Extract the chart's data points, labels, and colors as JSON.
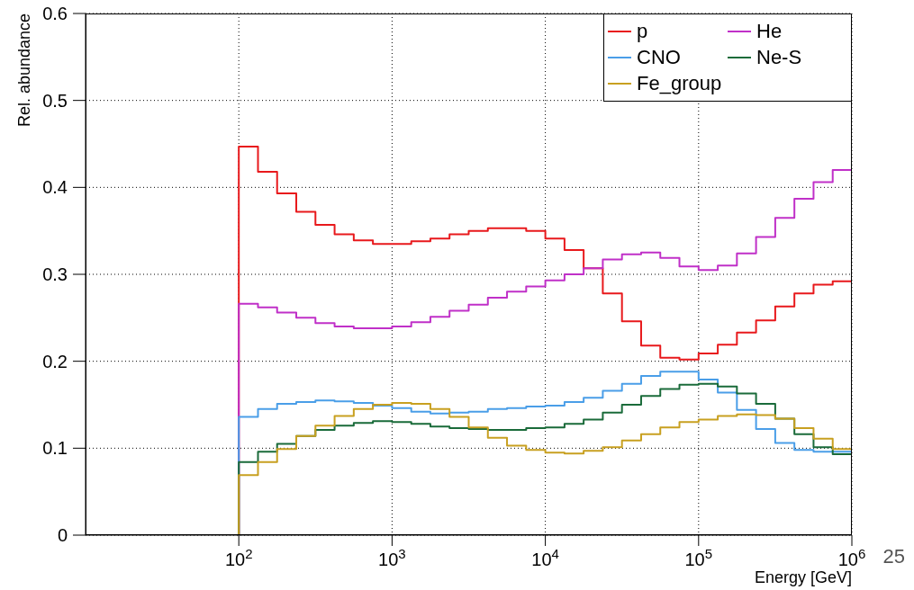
{
  "chart_data": {
    "type": "histogram",
    "xlabel": "Energy [GeV]",
    "ylabel": "Rel. abundance",
    "log": "x",
    "bins": [
      10,
      13.34,
      17.78,
      23.71,
      31.62,
      42.17,
      56.23,
      74.99,
      100,
      133.4,
      177.8,
      237.1,
      316.2,
      421.7,
      562.3,
      749.9,
      1000,
      1334,
      1778,
      2371,
      3162,
      4217,
      5623,
      7499,
      10000,
      13340,
      17780,
      23710,
      31620,
      42170,
      56230,
      74990,
      100000,
      133400,
      177800,
      237100,
      316200,
      421700,
      562300,
      749900,
      1000000
    ],
    "series": [
      {
        "name": "p",
        "color": "#e8191c",
        "values": [
          0,
          0,
          0,
          0,
          0,
          0,
          0,
          0,
          0.447,
          0.418,
          0.393,
          0.372,
          0.357,
          0.346,
          0.339,
          0.335,
          0.335,
          0.338,
          0.341,
          0.346,
          0.35,
          0.353,
          0.353,
          0.35,
          0.341,
          0.328,
          0.307,
          0.278,
          0.246,
          0.218,
          0.204,
          0.202,
          0.209,
          0.219,
          0.233,
          0.247,
          0.263,
          0.278,
          0.288,
          0.292
        ]
      },
      {
        "name": "He",
        "color": "#c030c8",
        "values": [
          0,
          0,
          0,
          0,
          0,
          0,
          0,
          0,
          0.266,
          0.262,
          0.256,
          0.25,
          0.244,
          0.24,
          0.238,
          0.238,
          0.24,
          0.245,
          0.251,
          0.258,
          0.265,
          0.273,
          0.28,
          0.286,
          0.293,
          0.3,
          0.307,
          0.317,
          0.323,
          0.325,
          0.319,
          0.309,
          0.305,
          0.31,
          0.324,
          0.343,
          0.365,
          0.387,
          0.406,
          0.42
        ]
      },
      {
        "name": "CNO",
        "color": "#4a9ee8",
        "values": [
          0,
          0,
          0,
          0,
          0,
          0,
          0,
          0,
          0.136,
          0.145,
          0.151,
          0.153,
          0.155,
          0.154,
          0.152,
          0.149,
          0.146,
          0.142,
          0.14,
          0.141,
          0.142,
          0.145,
          0.146,
          0.148,
          0.149,
          0.153,
          0.158,
          0.166,
          0.174,
          0.183,
          0.188,
          0.188,
          0.179,
          0.164,
          0.144,
          0.122,
          0.106,
          0.098,
          0.096,
          0.096
        ]
      },
      {
        "name": "Ne-S",
        "color": "#1a6b3a",
        "values": [
          0,
          0,
          0,
          0,
          0,
          0,
          0,
          0,
          0.084,
          0.096,
          0.105,
          0.114,
          0.121,
          0.126,
          0.129,
          0.131,
          0.13,
          0.128,
          0.125,
          0.123,
          0.122,
          0.121,
          0.121,
          0.123,
          0.124,
          0.128,
          0.133,
          0.141,
          0.15,
          0.16,
          0.168,
          0.173,
          0.174,
          0.171,
          0.163,
          0.151,
          0.134,
          0.116,
          0.101,
          0.093
        ]
      },
      {
        "name": "Fe_group",
        "color": "#c8a020",
        "values": [
          0,
          0,
          0,
          0,
          0,
          0,
          0,
          0,
          0.069,
          0.084,
          0.099,
          0.114,
          0.126,
          0.137,
          0.145,
          0.15,
          0.152,
          0.151,
          0.145,
          0.136,
          0.124,
          0.112,
          0.103,
          0.098,
          0.095,
          0.094,
          0.097,
          0.101,
          0.109,
          0.116,
          0.124,
          0.13,
          0.133,
          0.137,
          0.139,
          0.138,
          0.134,
          0.123,
          0.111,
          0.099
        ]
      }
    ],
    "xlim": [
      10,
      1000000
    ],
    "xticks": [
      {
        "value": 100,
        "label": "10$^{2}$"
      },
      {
        "value": 1000,
        "label": "10$^{3}$"
      },
      {
        "value": 10000,
        "label": "10$^{4}$"
      },
      {
        "value": 100000,
        "label": "10$^{5}$"
      },
      {
        "value": 1000000,
        "label": "10$^{6}$"
      }
    ],
    "ylim": [
      0,
      0.6
    ],
    "yticks": [
      0,
      0.1,
      0.2,
      0.3,
      0.4,
      0.5,
      0.6
    ],
    "grid": true,
    "legend": "top right",
    "annotations": [
      "25"
    ]
  }
}
